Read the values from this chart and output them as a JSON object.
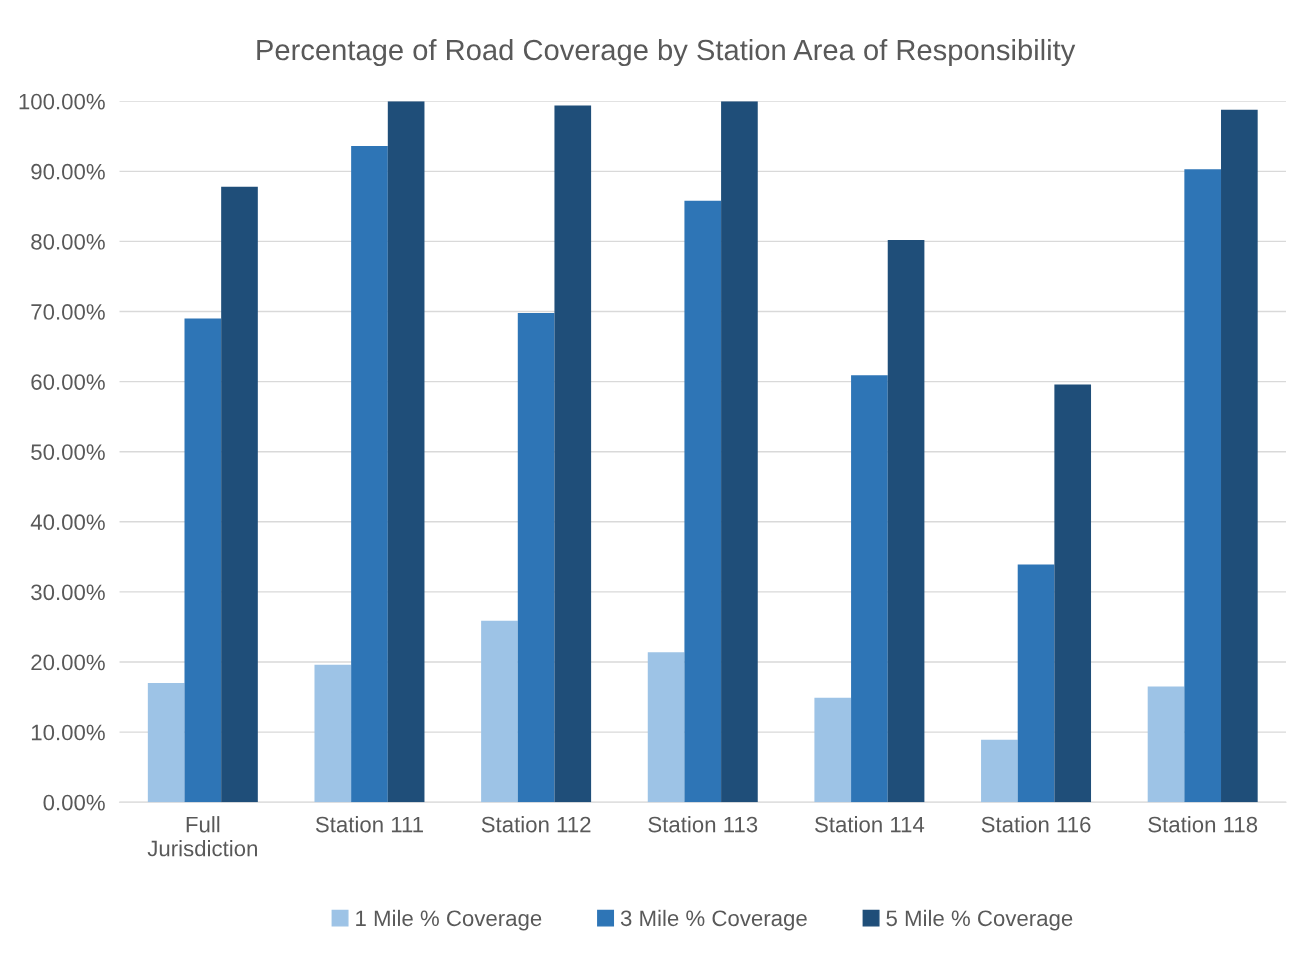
{
  "chart_data": {
    "type": "bar",
    "title": "Percentage of Road Coverage by Station Area of Responsibility",
    "categories": [
      "Full\nJurisdiction",
      "Station 111",
      "Station 112",
      "Station 113",
      "Station 114",
      "Station 116",
      "Station 118"
    ],
    "series": [
      {
        "name": "1 Mile % Coverage",
        "color": "#9dc3e6",
        "values": [
          17.0,
          19.6,
          25.9,
          21.4,
          14.9,
          8.9,
          16.5
        ]
      },
      {
        "name": "3 Mile % Coverage",
        "color": "#2e75b6",
        "values": [
          69.0,
          93.6,
          69.8,
          85.8,
          60.9,
          33.9,
          90.3
        ]
      },
      {
        "name": "5 Mile % Coverage",
        "color": "#1f4e79",
        "values": [
          87.8,
          100,
          99.4,
          100,
          80.2,
          59.6,
          98.8
        ]
      }
    ],
    "ylim": [
      0,
      100
    ],
    "yticks": [
      {
        "value": 0,
        "label": "0.00%"
      },
      {
        "value": 10,
        "label": "10.00%"
      },
      {
        "value": 20,
        "label": "20.00%"
      },
      {
        "value": 30,
        "label": "30.00%"
      },
      {
        "value": 40,
        "label": "40.00%"
      },
      {
        "value": 50,
        "label": "50.00%"
      },
      {
        "value": 60,
        "label": "60.00%"
      },
      {
        "value": 70,
        "label": "70.00%"
      },
      {
        "value": 80,
        "label": "80.00%"
      },
      {
        "value": 90,
        "label": "90.00%"
      },
      {
        "value": 100,
        "label": "100.00%"
      }
    ],
    "grid": "y",
    "legend": "bottom"
  }
}
